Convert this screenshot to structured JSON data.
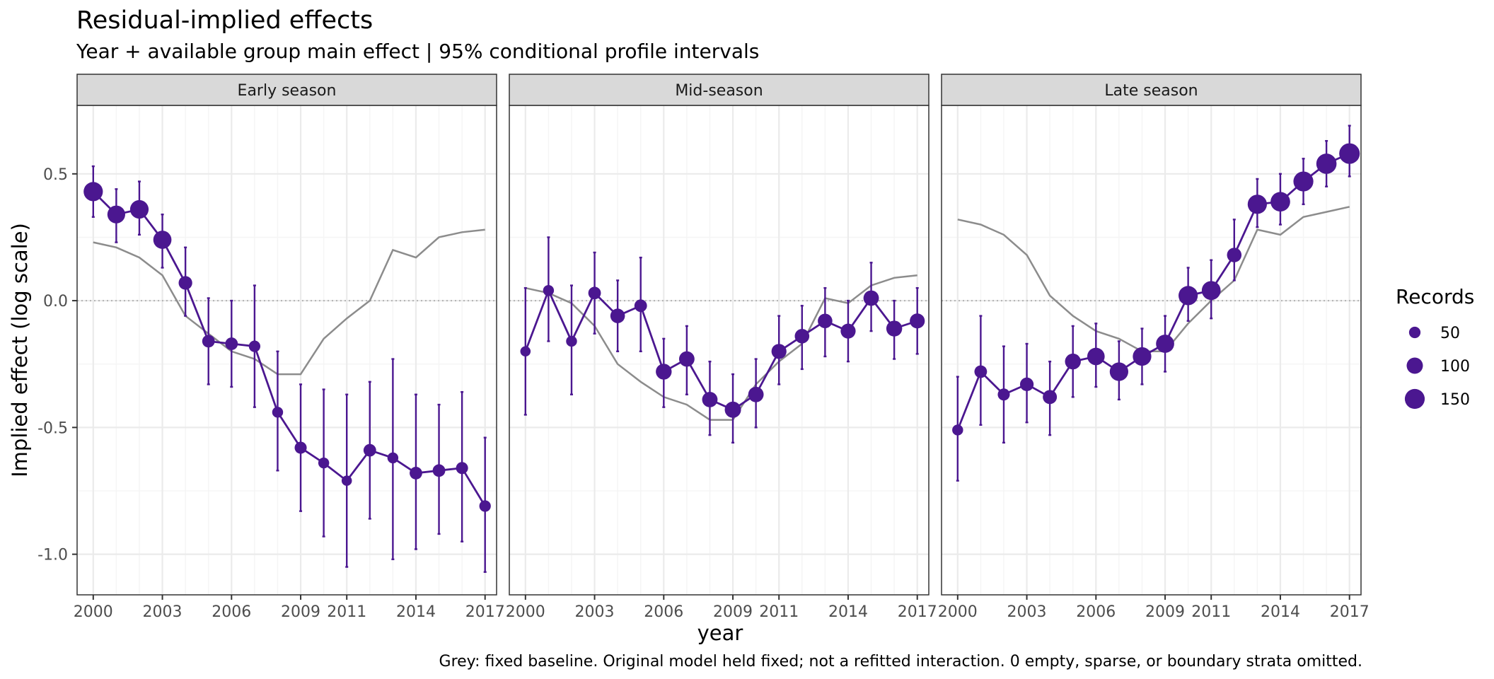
{
  "chart_data": {
    "type": "scatter",
    "title": "Residual-implied effects",
    "subtitle": "Year + available group main effect | 95% conditional profile intervals",
    "xlabel": "year",
    "ylabel": "Implied effect (log scale)",
    "caption": "Grey: fixed baseline. Original model held fixed; not a refitted interaction. 0 empty, sparse, or boundary strata omitted.",
    "xlim": [
      1999.3,
      2017.5
    ],
    "ylim": [
      -1.16,
      0.77
    ],
    "x_ticks": [
      2000,
      2003,
      2006,
      2009,
      2011,
      2014,
      2017
    ],
    "x_tick_labels": [
      "2000",
      "2003",
      "2006",
      "2009",
      "2011",
      "2014",
      "2017"
    ],
    "y_ticks": [
      -1.0,
      -0.5,
      0.0,
      0.5
    ],
    "y_tick_labels": [
      "-1.0",
      "-0.5",
      "0.0",
      "0.5"
    ],
    "reference_line": 0,
    "grid": true,
    "colors": {
      "series": "#4b1790",
      "baseline": "#8c8c8c",
      "reference": "#b3b3b3",
      "strip_bg": "#d9d9d9",
      "panel_border": "#333333",
      "grid_major": "#ebebeb",
      "grid_minor": "#f5f5f5"
    },
    "legend": {
      "title": "Records",
      "position": "right",
      "entries": [
        {
          "label": "50",
          "value": 50
        },
        {
          "label": "100",
          "value": 100
        },
        {
          "label": "150",
          "value": 150
        }
      ]
    },
    "panels": [
      {
        "name": "Early season",
        "years": [
          2000,
          2001,
          2002,
          2003,
          2004,
          2005,
          2006,
          2007,
          2008,
          2009,
          2010,
          2011,
          2012,
          2013,
          2014,
          2015,
          2016,
          2017
        ],
        "estimate": [
          0.43,
          0.34,
          0.36,
          0.24,
          0.07,
          -0.16,
          -0.17,
          -0.18,
          -0.44,
          -0.58,
          -0.64,
          -0.71,
          -0.59,
          -0.62,
          -0.68,
          -0.67,
          -0.66,
          -0.81
        ],
        "lower": [
          0.33,
          0.23,
          0.26,
          0.13,
          -0.06,
          -0.33,
          -0.34,
          -0.42,
          -0.67,
          -0.83,
          -0.93,
          -1.05,
          -0.86,
          -1.02,
          -0.98,
          -0.92,
          -0.95,
          -1.07
        ],
        "upper": [
          0.53,
          0.44,
          0.47,
          0.34,
          0.21,
          0.01,
          0.0,
          0.06,
          -0.2,
          -0.33,
          -0.35,
          -0.37,
          -0.32,
          -0.23,
          -0.37,
          -0.41,
          -0.36,
          -0.54
        ],
        "records": [
          140,
          120,
          130,
          125,
          70,
          60,
          60,
          50,
          45,
          55,
          45,
          40,
          60,
          45,
          60,
          60,
          55,
          50
        ],
        "baseline": [
          0.23,
          0.21,
          0.17,
          0.1,
          -0.06,
          -0.13,
          -0.2,
          -0.23,
          -0.29,
          -0.29,
          -0.15,
          -0.07,
          0.0,
          0.2,
          0.17,
          0.25,
          0.27,
          0.28
        ]
      },
      {
        "name": "Mid-season",
        "years": [
          2000,
          2001,
          2002,
          2003,
          2004,
          2005,
          2006,
          2007,
          2008,
          2009,
          2010,
          2011,
          2012,
          2013,
          2014,
          2015,
          2016,
          2017
        ],
        "estimate": [
          -0.2,
          0.04,
          -0.16,
          0.03,
          -0.06,
          -0.02,
          -0.28,
          -0.23,
          -0.39,
          -0.43,
          -0.37,
          -0.2,
          -0.14,
          -0.08,
          -0.12,
          0.01,
          -0.11,
          -0.08
        ],
        "lower": [
          -0.45,
          -0.16,
          -0.37,
          -0.13,
          -0.2,
          -0.2,
          -0.42,
          -0.37,
          -0.53,
          -0.56,
          -0.5,
          -0.33,
          -0.27,
          -0.22,
          -0.24,
          -0.12,
          -0.23,
          -0.21
        ],
        "upper": [
          0.05,
          0.25,
          0.06,
          0.19,
          0.08,
          0.17,
          -0.15,
          -0.1,
          -0.24,
          -0.29,
          -0.23,
          -0.06,
          -0.02,
          0.05,
          0.0,
          0.15,
          0.0,
          0.05
        ],
        "records": [
          40,
          45,
          45,
          60,
          80,
          60,
          95,
          90,
          90,
          100,
          90,
          85,
          80,
          80,
          85,
          90,
          95,
          85
        ],
        "baseline": [
          0.05,
          0.03,
          -0.01,
          -0.1,
          -0.25,
          -0.32,
          -0.38,
          -0.41,
          -0.47,
          -0.47,
          -0.33,
          -0.24,
          -0.17,
          0.01,
          -0.01,
          0.06,
          0.09,
          0.1
        ]
      },
      {
        "name": "Late season",
        "years": [
          2000,
          2001,
          2002,
          2003,
          2004,
          2005,
          2006,
          2007,
          2008,
          2009,
          2010,
          2011,
          2012,
          2013,
          2014,
          2015,
          2016,
          2017
        ],
        "estimate": [
          -0.51,
          -0.28,
          -0.37,
          -0.33,
          -0.38,
          -0.24,
          -0.22,
          -0.28,
          -0.22,
          -0.17,
          0.02,
          0.04,
          0.18,
          0.38,
          0.39,
          0.47,
          0.54,
          0.58
        ],
        "lower": [
          -0.71,
          -0.49,
          -0.56,
          -0.48,
          -0.53,
          -0.38,
          -0.34,
          -0.39,
          -0.33,
          -0.28,
          -0.08,
          -0.07,
          0.08,
          0.29,
          0.3,
          0.38,
          0.45,
          0.49
        ],
        "upper": [
          -0.3,
          -0.06,
          -0.18,
          -0.17,
          -0.24,
          -0.1,
          -0.09,
          -0.16,
          -0.11,
          -0.06,
          0.13,
          0.16,
          0.32,
          0.48,
          0.5,
          0.56,
          0.63,
          0.69
        ],
        "records": [
          45,
          60,
          55,
          70,
          75,
          95,
          115,
          130,
          130,
          125,
          140,
          135,
          80,
          140,
          145,
          150,
          155,
          160
        ],
        "baseline": [
          0.32,
          0.3,
          0.26,
          0.18,
          0.02,
          -0.06,
          -0.12,
          -0.15,
          -0.2,
          -0.2,
          -0.09,
          0.0,
          0.08,
          0.28,
          0.26,
          0.33,
          0.35,
          0.37
        ]
      }
    ]
  }
}
